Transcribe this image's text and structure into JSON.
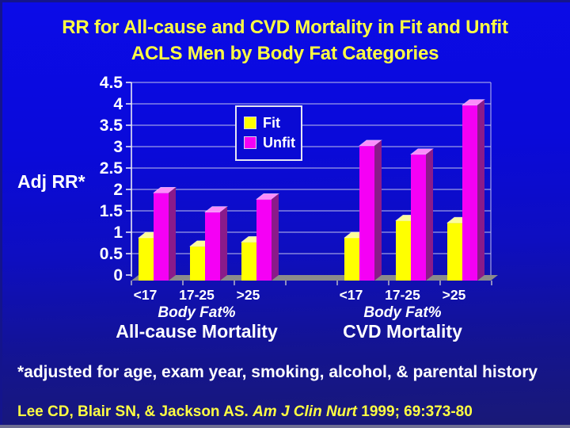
{
  "title": {
    "line1": "RR for All-cause and CVD Mortality in Fit and Unfit",
    "line2": "ACLS Men by Body Fat Categories"
  },
  "chart_data": {
    "type": "bar",
    "style": "3d-column",
    "ylabel": "Adj RR*",
    "ylim": [
      0,
      4.5
    ],
    "ytick_step": 0.5,
    "grid": true,
    "legend_position": "inside-top-center",
    "category_axis_label": "Body Fat%",
    "series": [
      {
        "name": "Fit",
        "color": "#ffff00",
        "color_top": "#fdfd9a",
        "color_side": "#a2a212"
      },
      {
        "name": "Unfit",
        "color": "#f500f5",
        "color_top": "#fb8dfb",
        "color_side": "#8a1b8a"
      }
    ],
    "groups": [
      {
        "label": "All-cause Mortality",
        "categories": [
          "<17",
          "17-25",
          ">25"
        ],
        "values": [
          [
            1.0,
            0.8,
            0.9
          ],
          [
            2.05,
            1.6,
            1.9
          ]
        ]
      },
      {
        "label": "CVD Mortality",
        "categories": [
          "<17",
          "17-25",
          ">25"
        ],
        "values": [
          [
            1.0,
            1.4,
            1.35
          ],
          [
            3.15,
            2.95,
            4.1
          ]
        ]
      }
    ],
    "colors": {
      "background_top": "#0b0be8",
      "background_bottom": "#191975",
      "gridline": "#c0c0ea",
      "floor": "#8b8b8b",
      "axis_text": "#ffffff",
      "title_text": "#ffff42"
    }
  },
  "footer": {
    "note": "*adjusted for age, exam year, smoking, alcohol, & parental history",
    "citation_prefix": "Lee CD, Blair SN, & Jackson AS. ",
    "citation_journal": "Am J Clin Nurt ",
    "citation_suffix": "1999; 69:373-80"
  }
}
